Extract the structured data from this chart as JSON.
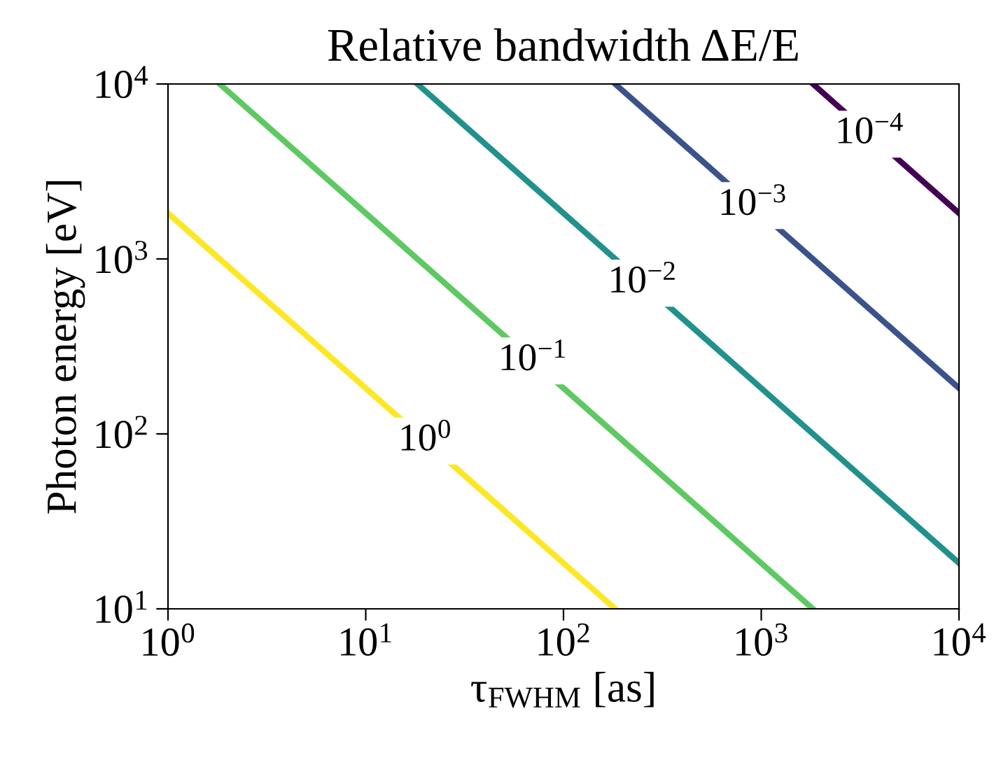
{
  "chart_data": {
    "type": "line",
    "title": "Relative bandwidth ΔE/E",
    "xlabel": "τ$_{FWHM}$ [as]",
    "ylabel": "Photon energy [eV]",
    "log": "xy",
    "xlim": [
      1,
      10000
    ],
    "ylim": [
      10,
      10000
    ],
    "xticks": [
      {
        "value": 1,
        "label": "10$^{0}$"
      },
      {
        "value": 10,
        "label": "10$^{1}$"
      },
      {
        "value": 100,
        "label": "10$^{2}$"
      },
      {
        "value": 1000,
        "label": "10$^{3}$"
      },
      {
        "value": 10000,
        "label": "10$^{4}$"
      }
    ],
    "yticks": [
      {
        "value": 10,
        "label": "10$^{1}$"
      },
      {
        "value": 100,
        "label": "10$^{2}$"
      },
      {
        "value": 1000,
        "label": "10$^{3}$"
      },
      {
        "value": 10000,
        "label": "10$^{4}$"
      }
    ],
    "series": [
      {
        "color": "#fde725",
        "x": [
          1,
          182.5
        ],
        "values": [
          1825,
          10
        ]
      },
      {
        "color": "#5ec962",
        "x": [
          1.825,
          1825
        ],
        "values": [
          10000,
          10
        ]
      },
      {
        "color": "#21918c",
        "x": [
          18.25,
          10000
        ],
        "values": [
          10000,
          18.25
        ]
      },
      {
        "color": "#3b528b",
        "x": [
          182.5,
          10000
        ],
        "values": [
          10000,
          182.5
        ]
      },
      {
        "color": "#440154",
        "x": [
          1825,
          10000
        ],
        "values": [
          10000,
          1825
        ]
      }
    ],
    "annotations": [
      {
        "text": "10$^{0}$",
        "x": 20,
        "y": 91
      },
      {
        "text": "10$^{−1}$",
        "x": 70,
        "y": 261
      },
      {
        "text": "10$^{−2}$",
        "x": 251,
        "y": 727
      },
      {
        "text": "10$^{−3}$",
        "x": 905,
        "y": 2017
      },
      {
        "text": "10$^{−4}$",
        "x": 3532,
        "y": 5167
      }
    ],
    "grid": false
  }
}
